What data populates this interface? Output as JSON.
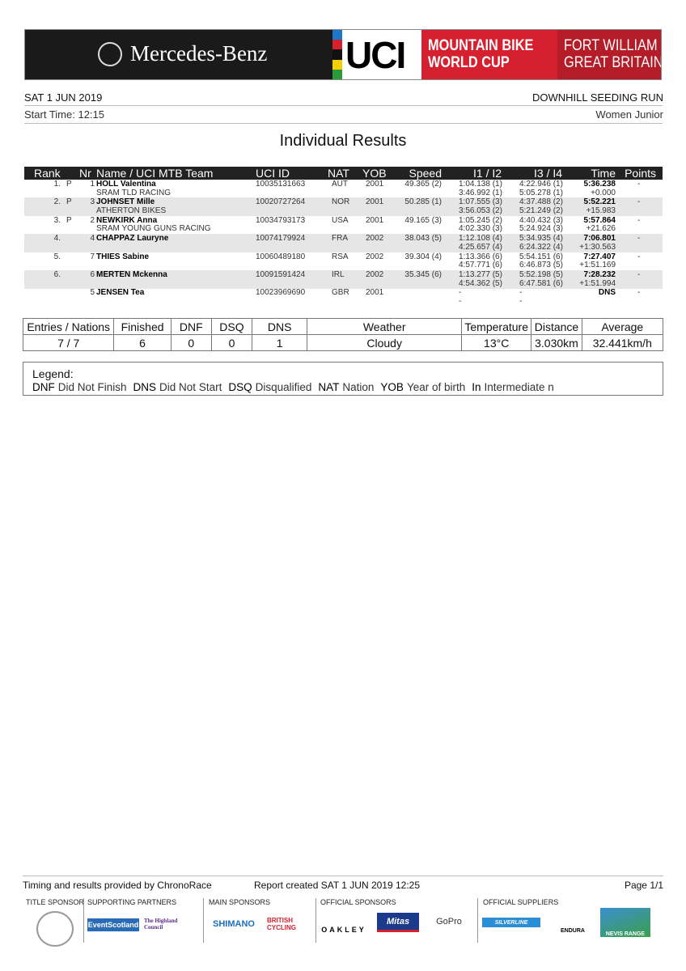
{
  "banner": {
    "title_sponsor": "Mercedes-Benz",
    "uci": "UCI",
    "series_line1": "MOUNTAIN BIKE",
    "series_line2": "WORLD CUP",
    "venue_line1": "FORT WILLIAM",
    "venue_line2": "GREAT BRITAIN",
    "colors": {
      "red": "#d6202f",
      "dark_red": "#b41c28",
      "black": "#1a1a1a"
    }
  },
  "header": {
    "date": "SAT 1 JUN 2019",
    "start_time": "Start Time: 12:15",
    "event": "DOWNHILL SEEDING RUN",
    "category": "Women Junior",
    "title": "Individual Results"
  },
  "columns": [
    "Rank",
    "Nr",
    "Name / UCI MTB Team",
    "UCI ID",
    "NAT",
    "YOB",
    "Speed",
    "I1 / I2",
    "I3 / I4",
    "Time",
    "Points"
  ],
  "results": [
    {
      "rank": "1.",
      "p": "P",
      "nr": "1",
      "name": "HOLL Valentina",
      "team": "SRAM TLD RACING",
      "uci_id": "10035131663",
      "nat": "AUT",
      "yob": "2001",
      "speed": "49.365 (2)",
      "i1": "1:04.138 (1)",
      "i2": "3:46.992 (1)",
      "i3": "4:22.946 (1)",
      "i4": "5:05.278 (1)",
      "time": "5:36.238",
      "gap": "+0.000",
      "points": "-"
    },
    {
      "rank": "2.",
      "p": "P",
      "nr": "3",
      "name": "JOHNSET Mille",
      "team": "ATHERTON BIKES",
      "uci_id": "10020727264",
      "nat": "NOR",
      "yob": "2001",
      "speed": "50.285 (1)",
      "i1": "1:07.555 (3)",
      "i2": "3:56.053 (2)",
      "i3": "4:37.488 (2)",
      "i4": "5:21.249 (2)",
      "time": "5:52.221",
      "gap": "+15.983",
      "points": "-"
    },
    {
      "rank": "3.",
      "p": "P",
      "nr": "2",
      "name": "NEWKIRK Anna",
      "team": "SRAM YOUNG GUNS RACING",
      "uci_id": "10034793173",
      "nat": "USA",
      "yob": "2001",
      "speed": "49.165 (3)",
      "i1": "1:05.245 (2)",
      "i2": "4:02.330 (3)",
      "i3": "4:40.432 (3)",
      "i4": "5:24.924 (3)",
      "time": "5:57.864",
      "gap": "+21.626",
      "points": "-"
    },
    {
      "rank": "4.",
      "p": "",
      "nr": "4",
      "name": "CHAPPAZ Lauryne",
      "team": "",
      "uci_id": "10074179924",
      "nat": "FRA",
      "yob": "2002",
      "speed": "38.043 (5)",
      "i1": "1:12.108 (4)",
      "i2": "4:25.657 (4)",
      "i3": "5:34.935 (4)",
      "i4": "6:24.322 (4)",
      "time": "7:06.801",
      "gap": "+1:30.563",
      "points": "-"
    },
    {
      "rank": "5.",
      "p": "",
      "nr": "7",
      "name": "THIES Sabine",
      "team": "",
      "uci_id": "10060489180",
      "nat": "RSA",
      "yob": "2002",
      "speed": "39.304 (4)",
      "i1": "1:13.366 (6)",
      "i2": "4:57.771 (6)",
      "i3": "5:54.151 (6)",
      "i4": "6:46.873 (5)",
      "time": "7:27.407",
      "gap": "+1:51.169",
      "points": "-"
    },
    {
      "rank": "6.",
      "p": "",
      "nr": "6",
      "name": "MERTEN Mckenna",
      "team": "",
      "uci_id": "10091591424",
      "nat": "IRL",
      "yob": "2002",
      "speed": "35.345 (6)",
      "i1": "1:13.277 (5)",
      "i2": "4:54.362 (5)",
      "i3": "5:52.198 (5)",
      "i4": "6:47.581 (6)",
      "time": "7:28.232",
      "gap": "+1:51.994",
      "points": "-"
    },
    {
      "rank": "",
      "p": "",
      "nr": "5",
      "name": "JENSEN Tea",
      "team": "",
      "uci_id": "10023969690",
      "nat": "GBR",
      "yob": "2001",
      "speed": "",
      "i1": "-",
      "i2": "-",
      "i3": "-",
      "i4": "-",
      "time": "DNS",
      "gap": "",
      "points": "-"
    }
  ],
  "summary": {
    "headers": [
      "Entries / Nations",
      "Finished",
      "DNF",
      "DSQ",
      "DNS",
      "Weather",
      "Temperature",
      "Distance",
      "Average"
    ],
    "values": [
      "7 / 7",
      "6",
      "0",
      "0",
      "1",
      "Cloudy",
      "13°C",
      "3.030km",
      "32.441km/h"
    ]
  },
  "legend": {
    "title": "Legend:",
    "items": [
      {
        "k": "DNF",
        "v": "Did Not Finish"
      },
      {
        "k": "DNS",
        "v": "Did Not Start"
      },
      {
        "k": "DSQ",
        "v": "Disqualified"
      },
      {
        "k": "NAT",
        "v": "Nation"
      },
      {
        "k": "YOB",
        "v": "Year of birth"
      },
      {
        "k": "In",
        "v": "Intermediate n"
      }
    ]
  },
  "footer": {
    "timing": "Timing and results provided by ChronoRace",
    "report": "Report created SAT 1 JUN 2019 12:25",
    "page": "Page 1/1"
  },
  "sponsors": {
    "title_sponsor": "TITLE SPONSOR",
    "supporting": "SUPPORTING PARTNERS",
    "main": "MAIN SPONSORS",
    "official": "OFFICIAL SPONSORS",
    "suppliers": "OFFICIAL SUPPLIERS",
    "logos": [
      "EventScotland",
      "The Highland Council",
      "SHIMANO",
      "BRITISH CYCLING",
      "OAKLEY",
      "Mitas",
      "GoPro",
      "SILVERLINE",
      "ENDURA",
      "NEVIS RANGE"
    ]
  }
}
